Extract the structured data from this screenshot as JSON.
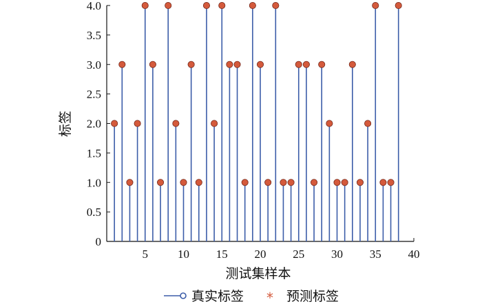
{
  "chart_data": {
    "type": "stem",
    "xlabel": "测试集样本",
    "ylabel": "标签",
    "xlim": [
      0,
      40
    ],
    "ylim": [
      0,
      4
    ],
    "xticks": [
      5,
      10,
      15,
      20,
      25,
      30,
      35,
      40
    ],
    "yticks": [
      "0",
      "0.5",
      "1.0",
      "1.5",
      "2.0",
      "2.5",
      "3.0",
      "3.5",
      "4.0"
    ],
    "grid": false,
    "legend_position": "bottom",
    "x": [
      1,
      2,
      3,
      4,
      5,
      6,
      7,
      8,
      9,
      10,
      11,
      12,
      13,
      14,
      15,
      16,
      17,
      18,
      19,
      20,
      21,
      22,
      23,
      24,
      25,
      26,
      27,
      28,
      29,
      30,
      31,
      32,
      33,
      34,
      35,
      36,
      37,
      38
    ],
    "series": [
      {
        "name": "真实标签",
        "marker": "open-circle-stem",
        "color": "#3b5ca8",
        "values": [
          2,
          3,
          1,
          2,
          4,
          3,
          1,
          4,
          2,
          1,
          3,
          1,
          4,
          2,
          4,
          3,
          3,
          1,
          4,
          3,
          1,
          4,
          1,
          1,
          3,
          3,
          1,
          3,
          2,
          1,
          1,
          3,
          1,
          2,
          4,
          1,
          1,
          4
        ]
      },
      {
        "name": "预测标签",
        "marker": "filled-circle",
        "color": "#d45a3c",
        "values": [
          2,
          3,
          1,
          2,
          4,
          3,
          1,
          4,
          2,
          1,
          3,
          1,
          4,
          2,
          4,
          3,
          3,
          1,
          4,
          3,
          1,
          4,
          1,
          1,
          3,
          3,
          1,
          3,
          2,
          1,
          1,
          3,
          1,
          2,
          4,
          1,
          1,
          4
        ]
      }
    ]
  },
  "legend": {
    "true_label": "真实标签",
    "pred_label": "预测标签",
    "pred_symbol": "*"
  }
}
